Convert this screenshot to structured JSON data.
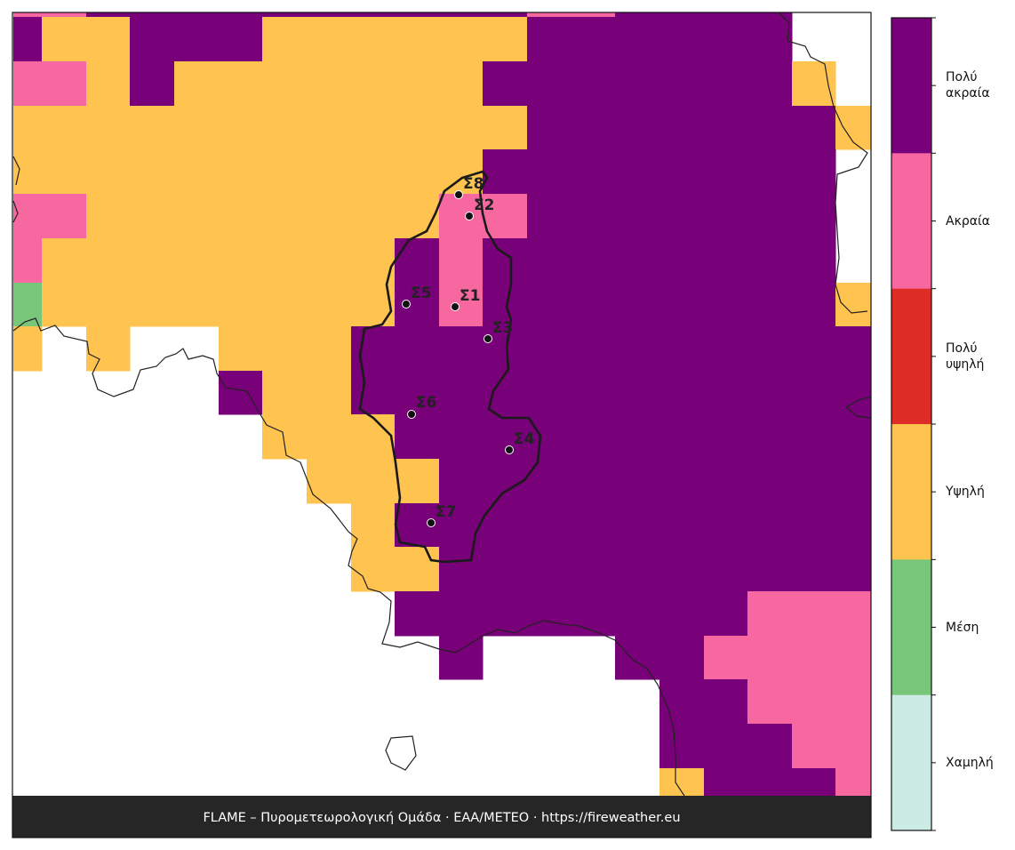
{
  "stations": [
    {
      "label": "Σ8"
    },
    {
      "label": "Σ2"
    },
    {
      "label": "Σ5"
    },
    {
      "label": "Σ1"
    },
    {
      "label": "Σ3"
    },
    {
      "label": "Σ6"
    },
    {
      "label": "Σ4"
    },
    {
      "label": "Σ7"
    }
  ],
  "colorbar": {
    "labels": [
      "Πολύ ακραία",
      "Ακραία",
      "Πολύ υψηλή",
      "Υψηλή",
      "Μέση",
      "Χαμηλή"
    ]
  },
  "footer": "FLAME – Πυρομετεωρολογική Ομάδα · ΕΑΑ/METEO · https://fireweather.eu"
}
